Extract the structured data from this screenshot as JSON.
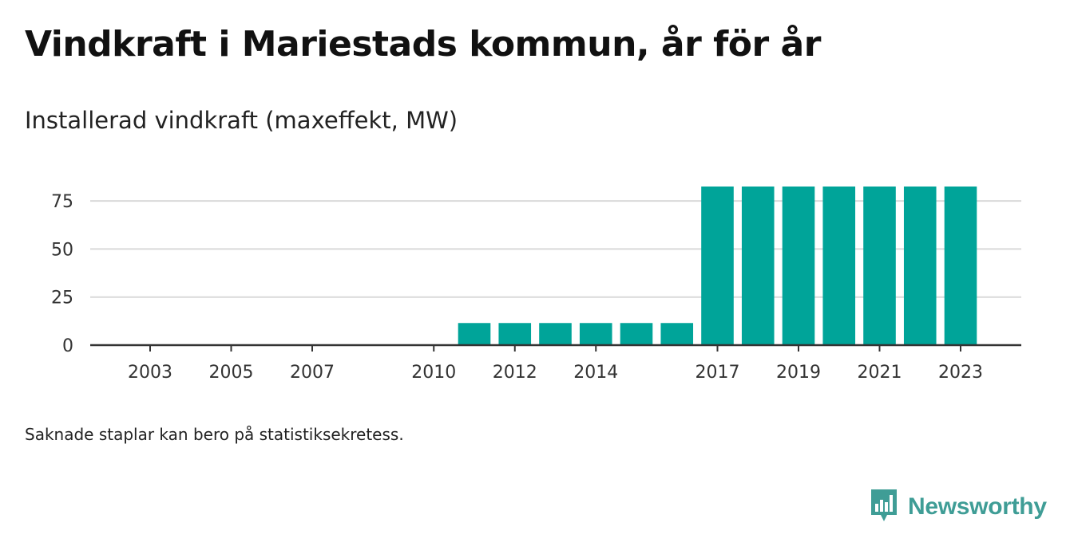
{
  "title": "Vindkraft i Mariestads kommun, år för år",
  "subtitle": "Installerad vindkraft (maxeffekt, MW)",
  "footnote": "Saknade staplar kan bero på statistiksekretess.",
  "brand": {
    "name": "Newsworthy",
    "icon": "newsworthy-logo-icon",
    "color": "#3f9d96"
  },
  "colors": {
    "bar": "#00a499",
    "grid": "#d9d9d9",
    "axis": "#333333"
  },
  "chart_data": {
    "type": "bar",
    "x": [
      2003,
      2004,
      2005,
      2006,
      2007,
      2008,
      2009,
      2010,
      2011,
      2012,
      2013,
      2014,
      2015,
      2016,
      2017,
      2018,
      2019,
      2020,
      2021,
      2022,
      2023
    ],
    "values": [
      0,
      0,
      0,
      0,
      0,
      0,
      0,
      0,
      11.5,
      11.5,
      11.5,
      11.5,
      11.5,
      11.5,
      82.5,
      82.5,
      82.5,
      82.5,
      82.5,
      82.5,
      82.5
    ],
    "x_tick_labels": [
      "2003",
      "2005",
      "2007",
      "2010",
      "2012",
      "2014",
      "2017",
      "2019",
      "2021",
      "2023"
    ],
    "y_ticks": [
      0,
      25,
      50,
      75
    ],
    "ylim": [
      0,
      82.5
    ],
    "xlabel": "",
    "ylabel": "",
    "grid": true,
    "legend": "none"
  }
}
